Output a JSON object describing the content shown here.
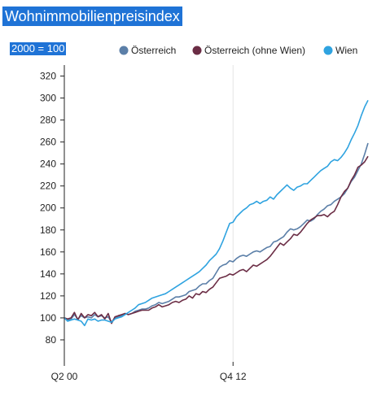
{
  "header": {
    "title": "Wohnimmobilienpreisindex",
    "unit_label": "2000 = 100"
  },
  "chart_data": {
    "type": "line",
    "title": "Wohnimmobilienpreisindex",
    "ylabel": "2000 = 100",
    "ylim": [
      60,
      330
    ],
    "y_ticks": [
      80,
      100,
      120,
      140,
      160,
      180,
      200,
      220,
      240,
      260,
      280,
      300,
      320
    ],
    "x_ticks": [
      "Q2 00",
      "Q4 12"
    ],
    "grid": {
      "vertical": true,
      "horizontal": false
    },
    "legend_position": "top",
    "periods_per_year": 4,
    "x": [
      "Q2 00",
      "Q3 00",
      "Q4 00",
      "Q1 01",
      "Q2 01",
      "Q3 01",
      "Q4 01",
      "Q1 02",
      "Q2 02",
      "Q3 02",
      "Q4 02",
      "Q1 03",
      "Q2 03",
      "Q3 03",
      "Q4 03",
      "Q1 04",
      "Q2 04",
      "Q3 04",
      "Q4 04",
      "Q1 05",
      "Q2 05",
      "Q3 05",
      "Q4 05",
      "Q1 06",
      "Q2 06",
      "Q3 06",
      "Q4 06",
      "Q1 07",
      "Q2 07",
      "Q3 07",
      "Q4 07",
      "Q1 08",
      "Q2 08",
      "Q3 08",
      "Q4 08",
      "Q1 09",
      "Q2 09",
      "Q3 09",
      "Q4 09",
      "Q1 10",
      "Q2 10",
      "Q3 10",
      "Q4 10",
      "Q1 11",
      "Q2 11",
      "Q3 11",
      "Q4 11",
      "Q1 12",
      "Q2 12",
      "Q3 12",
      "Q4 12",
      "Q1 13",
      "Q2 13",
      "Q3 13",
      "Q4 13",
      "Q1 14",
      "Q2 14",
      "Q3 14",
      "Q4 14",
      "Q1 15",
      "Q2 15",
      "Q3 15",
      "Q4 15",
      "Q1 16",
      "Q2 16",
      "Q3 16",
      "Q4 16",
      "Q1 17",
      "Q2 17",
      "Q3 17",
      "Q4 17",
      "Q1 18",
      "Q2 18",
      "Q3 18",
      "Q4 18",
      "Q1 19",
      "Q2 19",
      "Q3 19",
      "Q4 19",
      "Q1 20",
      "Q2 20",
      "Q3 20",
      "Q4 20",
      "Q1 21",
      "Q2 21",
      "Q3 21",
      "Q4 21",
      "Q1 22",
      "Q2 22",
      "Q3 22",
      "Q4 22"
    ],
    "series": [
      {
        "name": "Österreich",
        "color": "#5b7fa8",
        "values": [
          100,
          98,
          99,
          103,
          99,
          102,
          100,
          101,
          100,
          103,
          101,
          102,
          100,
          101,
          96,
          100,
          101,
          102,
          104,
          103,
          104,
          106,
          107,
          108,
          108,
          109,
          111,
          112,
          114,
          113,
          114,
          115,
          117,
          119,
          119,
          120,
          121,
          124,
          125,
          126,
          129,
          131,
          131,
          134,
          136,
          141,
          146,
          148,
          149,
          152,
          151,
          154,
          156,
          157,
          156,
          158,
          160,
          161,
          160,
          162,
          164,
          165,
          169,
          170,
          172,
          174,
          178,
          181,
          180,
          181,
          183,
          186,
          189,
          188,
          190,
          194,
          197,
          199,
          202,
          203,
          206,
          208,
          210,
          213,
          218,
          224,
          228,
          234,
          240,
          249,
          259
        ]
      },
      {
        "name": "Österreich (ohne Wien)",
        "color": "#6b2d45",
        "values": [
          100,
          99,
          100,
          105,
          98,
          104,
          100,
          103,
          102,
          105,
          101,
          103,
          99,
          104,
          95,
          101,
          102,
          103,
          104,
          103,
          104,
          105,
          106,
          107,
          107,
          107,
          109,
          110,
          112,
          110,
          111,
          112,
          114,
          115,
          114,
          116,
          117,
          120,
          118,
          122,
          121,
          124,
          123,
          126,
          128,
          132,
          136,
          137,
          138,
          140,
          139,
          141,
          143,
          144,
          142,
          145,
          148,
          147,
          149,
          151,
          153,
          156,
          160,
          164,
          168,
          166,
          169,
          172,
          176,
          175,
          178,
          182,
          186,
          189,
          191,
          193,
          193,
          194,
          192,
          195,
          197,
          203,
          210,
          215,
          218,
          225,
          230,
          237,
          239,
          242,
          247
        ]
      },
      {
        "name": "Wien",
        "color": "#2fa3e0",
        "values": [
          100,
          97,
          98,
          99,
          98,
          97,
          93,
          99,
          98,
          99,
          97,
          98,
          98,
          97,
          96,
          99,
          100,
          101,
          103,
          105,
          107,
          109,
          112,
          113,
          114,
          116,
          118,
          119,
          120,
          121,
          122,
          124,
          126,
          128,
          130,
          132,
          134,
          136,
          138,
          140,
          142,
          145,
          148,
          152,
          155,
          158,
          163,
          170,
          178,
          186,
          187,
          192,
          195,
          198,
          200,
          203,
          204,
          206,
          204,
          206,
          207,
          210,
          208,
          212,
          215,
          218,
          221,
          218,
          216,
          219,
          220,
          222,
          222,
          225,
          228,
          231,
          234,
          236,
          238,
          242,
          244,
          243,
          246,
          250,
          255,
          262,
          268,
          275,
          284,
          292,
          298
        ]
      }
    ]
  }
}
